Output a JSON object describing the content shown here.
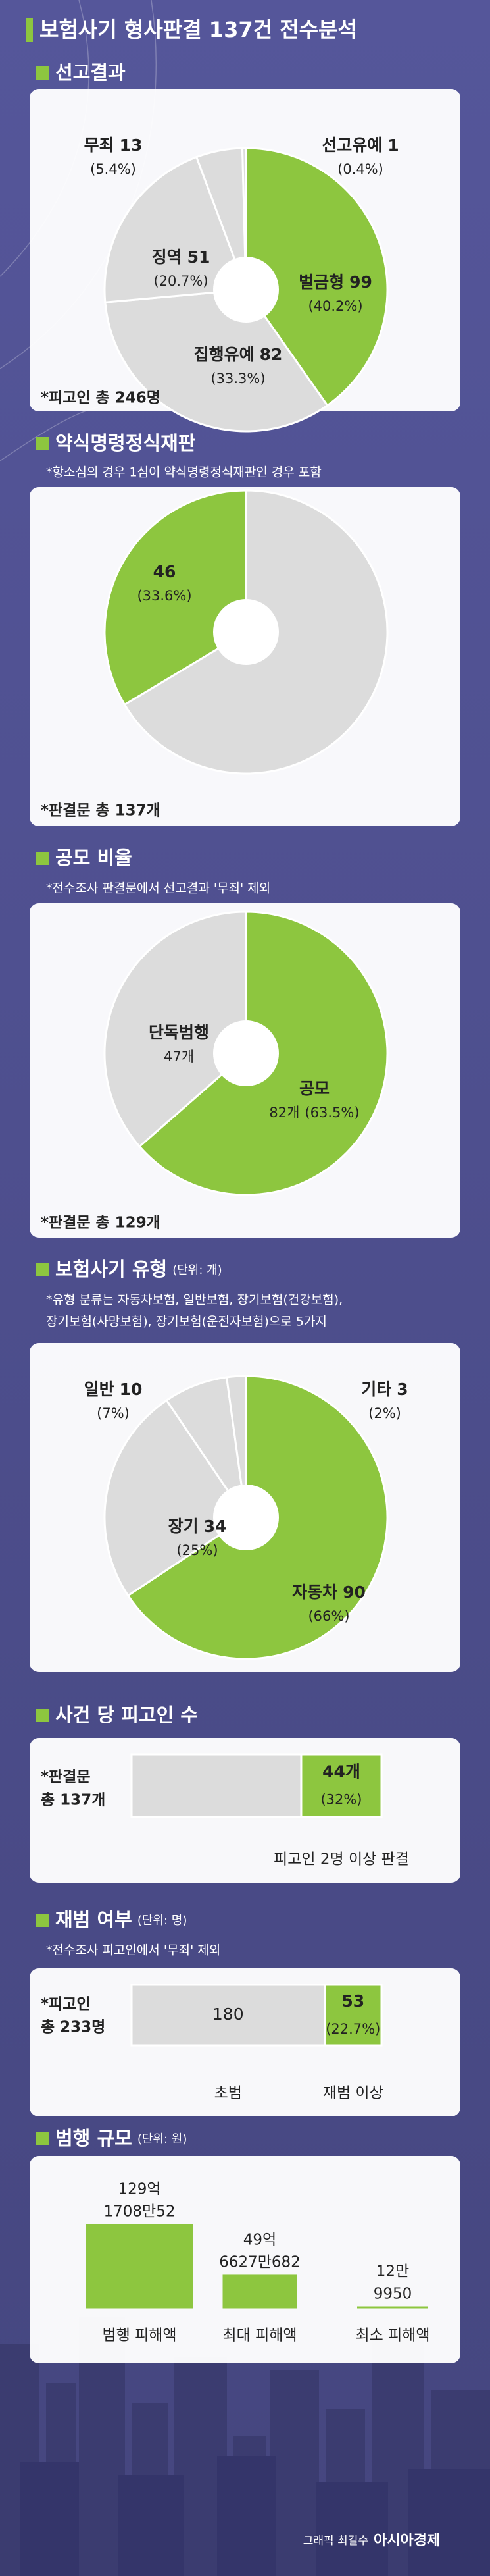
{
  "title": "보험사기 형사판결 137건 전수분석",
  "chart_data": [
    {
      "type": "pie",
      "title": "선고결과",
      "categories": [
        "벌금형",
        "집행유예",
        "징역",
        "무죄",
        "선고유예"
      ],
      "values": [
        99,
        82,
        51,
        13,
        1
      ],
      "percent_labels": [
        "(40.2%)",
        "(33.3%)",
        "(20.7%)",
        "(5.4%)",
        "(0.4%)"
      ],
      "colors": [
        "#8dc63f",
        "#dcdcdc",
        "#dcdcdc",
        "#dcdcdc",
        "#dcdcdc"
      ],
      "footnote": "*피고인 총 246명"
    },
    {
      "type": "pie",
      "title": "약식명령정식재판",
      "notes": [
        "*항소심의 경우 1심이 약식명령정식재판인 경우 포함"
      ],
      "categories": [
        null,
        null
      ],
      "values": [
        91,
        46
      ],
      "percent_labels": [
        null,
        "(33.6%)"
      ],
      "colors": [
        "#dcdcdc",
        "#8dc63f"
      ],
      "footnote": "*판결문 총 137개"
    },
    {
      "type": "pie",
      "title": "공모 비율",
      "notes": [
        "*전수조사 판결문에서 선고결과 '무죄' 제외"
      ],
      "categories": [
        "공모",
        "단독범행"
      ],
      "values": [
        82,
        47
      ],
      "value_labels": [
        "82개",
        "47개"
      ],
      "percent_labels": [
        "(63.5%)",
        null
      ],
      "colors": [
        "#8dc63f",
        "#dcdcdc"
      ],
      "footnote": "*판결문 총 129개"
    },
    {
      "type": "pie",
      "title": "보험사기 유형",
      "unit": "(단위: 개)",
      "notes": [
        "*유형 분류는 자동차보험, 일반보험, 장기보험(건강보험),",
        "장기보험(사망보험), 장기보험(운전자보험)으로 5가지"
      ],
      "categories": [
        "자동차",
        "장기",
        "일반",
        "기타"
      ],
      "values": [
        90,
        34,
        10,
        3
      ],
      "percent_labels": [
        "(66%)",
        "(25%)",
        "(7%)",
        "(2%)"
      ],
      "colors": [
        "#8dc63f",
        "#dcdcdc",
        "#dcdcdc",
        "#dcdcdc"
      ]
    },
    {
      "type": "stacked_bar",
      "title": "사건 당 피고인 수",
      "label": [
        "*판결문",
        "총 137개"
      ],
      "categories": [
        null,
        "피고인 2명 이상 판결"
      ],
      "values": [
        93,
        44
      ],
      "value_labels": [
        null,
        "44개"
      ],
      "percent_labels": [
        null,
        "(32%)"
      ],
      "colors": [
        "#dcdcdc",
        "#8dc63f"
      ],
      "xlim": [
        0,
        137
      ]
    },
    {
      "type": "stacked_bar",
      "title": "재범 여부",
      "unit": "(단위: 명)",
      "notes": [
        "*전수조사 피고인에서 '무죄' 제외"
      ],
      "label": [
        "*피고인",
        "총 233명"
      ],
      "categories": [
        "초범",
        "재범 이상"
      ],
      "values": [
        180,
        53
      ],
      "percent_labels": [
        null,
        "(22.7%)"
      ],
      "colors": [
        "#dcdcdc",
        "#8dc63f"
      ],
      "xlim": [
        0,
        233
      ]
    },
    {
      "type": "bar",
      "title": "범행 규모",
      "unit": "(단위: 원)",
      "categories": [
        "범행 피해액",
        "최대 피해액",
        "최소 피해액"
      ],
      "values": [
        12917080052,
        4966270682,
        129950
      ],
      "value_labels": [
        [
          "129억",
          "1708만52"
        ],
        [
          "49억",
          "6627만682"
        ],
        [
          "12만",
          "9950"
        ]
      ],
      "color": "#8dc63f"
    }
  ],
  "footer": {
    "credit": "그래픽 최길수",
    "brand": "아시아경제"
  }
}
